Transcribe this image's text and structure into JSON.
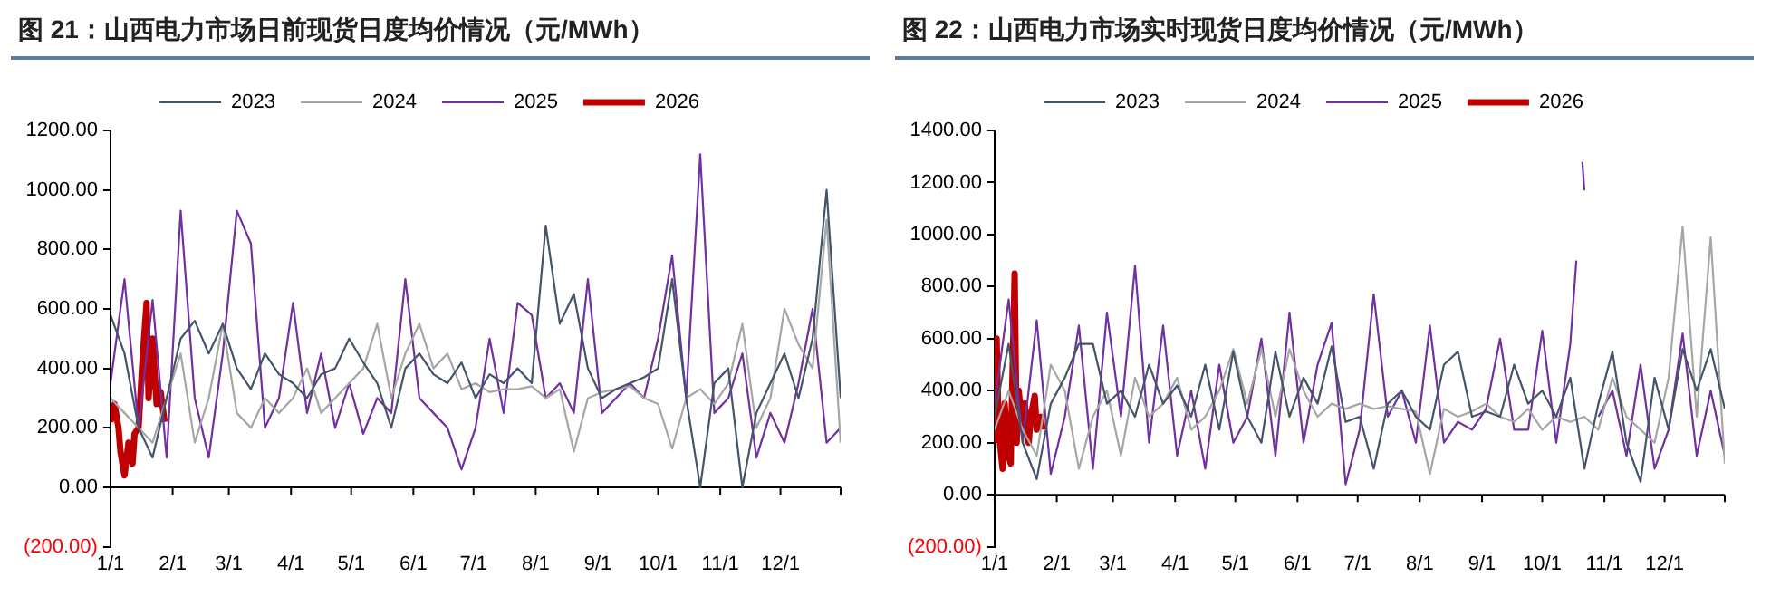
{
  "chart_data": [
    {
      "type": "line",
      "title": "图 21：山西电力市场日前现货日度均价情况（元/MWh）",
      "legend": "top",
      "x": [
        "--01-01",
        "--01-08",
        "--01-15",
        "--01-22",
        "--01-29",
        "--02-05",
        "--02-12",
        "--02-19",
        "--02-26",
        "--03-05",
        "--03-12",
        "--03-19",
        "--03-26",
        "--04-02",
        "--04-09",
        "--04-16",
        "--04-23",
        "--04-30",
        "--05-07",
        "--05-14",
        "--05-21",
        "--05-28",
        "--06-04",
        "--06-11",
        "--06-18",
        "--06-25",
        "--07-02",
        "--07-09",
        "--07-16",
        "--07-23",
        "--07-30",
        "--08-06",
        "--08-13",
        "--08-20",
        "--08-27",
        "--09-03",
        "--09-10",
        "--09-17",
        "--09-24",
        "--10-01",
        "--10-08",
        "--10-15",
        "--10-22",
        "--10-29",
        "--11-05",
        "--11-12",
        "--11-19",
        "--11-26",
        "--12-03",
        "--12-10",
        "--12-17",
        "--12-24",
        "--12-31"
      ],
      "xlim": [
        "--01-01",
        "--12-31"
      ],
      "xticks": [
        {
          "value": "--01-01",
          "label": "1/1"
        },
        {
          "value": "--02-01",
          "label": "2/1"
        },
        {
          "value": "--03-01",
          "label": "3/1"
        },
        {
          "value": "--04-01",
          "label": "4/1"
        },
        {
          "value": "--05-01",
          "label": "5/1"
        },
        {
          "value": "--06-01",
          "label": "6/1"
        },
        {
          "value": "--07-01",
          "label": "7/1"
        },
        {
          "value": "--08-01",
          "label": "8/1"
        },
        {
          "value": "--09-01",
          "label": "9/1"
        },
        {
          "value": "--10-01",
          "label": "10/1"
        },
        {
          "value": "--11-01",
          "label": "11/1"
        },
        {
          "value": "--12-01",
          "label": "12/1"
        }
      ],
      "ylim": [
        -200,
        1200
      ],
      "yticks": [
        {
          "value": -200,
          "label": "(200.00)"
        },
        {
          "value": 0,
          "label": "0.00"
        },
        {
          "value": 200,
          "label": "200.00"
        },
        {
          "value": 400,
          "label": "400.00"
        },
        {
          "value": 600,
          "label": "600.00"
        },
        {
          "value": 800,
          "label": "800.00"
        },
        {
          "value": 1000,
          "label": "1000.00"
        },
        {
          "value": 1200,
          "label": "1200.00"
        }
      ],
      "series": [
        {
          "name": "2023",
          "color": "#44546a",
          "values": [
            580,
            450,
            200,
            100,
            300,
            500,
            560,
            450,
            550,
            400,
            330,
            450,
            380,
            350,
            300,
            380,
            400,
            500,
            420,
            350,
            200,
            400,
            450,
            380,
            350,
            420,
            300,
            380,
            350,
            400,
            350,
            880,
            550,
            650,
            400,
            300,
            330,
            350,
            370,
            400,
            700,
            300,
            0,
            350,
            400,
            0,
            250,
            350,
            450,
            300,
            500,
            1000,
            300
          ]
        },
        {
          "name": "2024",
          "color": "#a6a6a6",
          "values": [
            300,
            250,
            200,
            150,
            300,
            450,
            150,
            300,
            550,
            250,
            200,
            300,
            250,
            300,
            400,
            250,
            300,
            350,
            400,
            550,
            300,
            450,
            550,
            400,
            450,
            330,
            350,
            320,
            330,
            330,
            340,
            300,
            330,
            120,
            300,
            320,
            330,
            340,
            300,
            280,
            130,
            300,
            330,
            280,
            350,
            550,
            200,
            300,
            600,
            480,
            400,
            900,
            150
          ]
        },
        {
          "name": "2025",
          "color": "#7030a0",
          "values": [
            350,
            700,
            200,
            630,
            100,
            930,
            300,
            100,
            450,
            930,
            820,
            200,
            300,
            620,
            250,
            450,
            200,
            350,
            180,
            300,
            250,
            700,
            300,
            250,
            200,
            60,
            200,
            500,
            250,
            620,
            580,
            300,
            350,
            250,
            700,
            250,
            300,
            350,
            300,
            500,
            780,
            300,
            1120,
            250,
            300,
            450,
            100,
            250,
            150,
            350,
            600,
            150,
            200
          ]
        },
        {
          "name": "2026",
          "color": "#c00000",
          "x": [
            "--01-01",
            "--01-03",
            "--01-05",
            "--01-06",
            "--01-08",
            "--01-10",
            "--01-12",
            "--01-13",
            "--01-15",
            "--01-17",
            "--01-19",
            "--01-20",
            "--01-22",
            "--01-24",
            "--01-26",
            "--01-28"
          ],
          "values": [
            220,
            280,
            200,
            120,
            40,
            150,
            80,
            180,
            200,
            430,
            620,
            300,
            500,
            280,
            320,
            220
          ]
        }
      ]
    },
    {
      "type": "line",
      "title": "图 22：山西电力市场实时现货日度均价情况（元/MWh）",
      "legend": "top",
      "x": [
        "--01-01",
        "--01-08",
        "--01-15",
        "--01-22",
        "--01-29",
        "--02-05",
        "--02-12",
        "--02-19",
        "--02-26",
        "--03-05",
        "--03-12",
        "--03-19",
        "--03-26",
        "--04-02",
        "--04-09",
        "--04-16",
        "--04-23",
        "--04-30",
        "--05-07",
        "--05-14",
        "--05-21",
        "--05-28",
        "--06-04",
        "--06-11",
        "--06-18",
        "--06-25",
        "--07-02",
        "--07-09",
        "--07-16",
        "--07-23",
        "--07-30",
        "--08-06",
        "--08-13",
        "--08-20",
        "--08-27",
        "--09-03",
        "--09-10",
        "--09-17",
        "--09-24",
        "--10-01",
        "--10-08",
        "--10-15",
        "--10-22",
        "--10-29",
        "--11-05",
        "--11-12",
        "--11-19",
        "--11-26",
        "--12-03",
        "--12-10",
        "--12-17",
        "--12-24",
        "--12-31"
      ],
      "xlim": [
        "--01-01",
        "--12-31"
      ],
      "xticks": [
        {
          "value": "--01-01",
          "label": "1/1"
        },
        {
          "value": "--02-01",
          "label": "2/1"
        },
        {
          "value": "--03-01",
          "label": "3/1"
        },
        {
          "value": "--04-01",
          "label": "4/1"
        },
        {
          "value": "--05-01",
          "label": "5/1"
        },
        {
          "value": "--06-01",
          "label": "6/1"
        },
        {
          "value": "--07-01",
          "label": "7/1"
        },
        {
          "value": "--08-01",
          "label": "8/1"
        },
        {
          "value": "--09-01",
          "label": "9/1"
        },
        {
          "value": "--10-01",
          "label": "10/1"
        },
        {
          "value": "--11-01",
          "label": "11/1"
        },
        {
          "value": "--12-01",
          "label": "12/1"
        }
      ],
      "ylim": [
        -200,
        1400
      ],
      "yticks": [
        {
          "value": -200,
          "label": "(200.00)"
        },
        {
          "value": 0,
          "label": "0.00"
        },
        {
          "value": 200,
          "label": "200.00"
        },
        {
          "value": 400,
          "label": "400.00"
        },
        {
          "value": 600,
          "label": "600.00"
        },
        {
          "value": 800,
          "label": "800.00"
        },
        {
          "value": 1000,
          "label": "1000.00"
        },
        {
          "value": 1200,
          "label": "1200.00"
        },
        {
          "value": 1400,
          "label": "1400.00"
        }
      ],
      "series": [
        {
          "name": "2023",
          "color": "#44546a",
          "values": [
            300,
            580,
            200,
            60,
            350,
            450,
            580,
            580,
            350,
            400,
            300,
            500,
            350,
            420,
            300,
            500,
            250,
            550,
            300,
            200,
            550,
            300,
            450,
            350,
            570,
            280,
            300,
            100,
            350,
            400,
            300,
            250,
            500,
            550,
            300,
            320,
            300,
            500,
            350,
            400,
            300,
            450,
            100,
            350,
            550,
            200,
            50,
            450,
            250,
            560,
            400,
            560,
            330
          ]
        },
        {
          "name": "2024",
          "color": "#a6a6a6",
          "values": [
            250,
            400,
            250,
            150,
            500,
            400,
            100,
            300,
            400,
            150,
            450,
            300,
            350,
            450,
            250,
            300,
            400,
            560,
            350,
            560,
            300,
            560,
            400,
            300,
            350,
            330,
            350,
            330,
            340,
            330,
            320,
            80,
            330,
            300,
            320,
            350,
            300,
            280,
            330,
            250,
            300,
            280,
            300,
            250,
            450,
            300,
            250,
            200,
            450,
            1030,
            300,
            990,
            120
          ]
        },
        {
          "name": "2025",
          "color": "#7030a0",
          "x": [
            "--01-01",
            "--01-08",
            "--01-15",
            "--01-22",
            "--01-29",
            "--02-05",
            "--02-12",
            "--02-19",
            "--02-26",
            "--03-05",
            "--03-12",
            "--03-19",
            "--03-26",
            "--04-02",
            "--04-09",
            "--04-16",
            "--04-23",
            "--04-30",
            "--05-07",
            "--05-14",
            "--05-21",
            "--05-28",
            "--06-04",
            "--06-11",
            "--06-18",
            "--06-25",
            "--07-02",
            "--07-09",
            "--07-16",
            "--07-23",
            "--07-30",
            "--08-06",
            "--08-13",
            "--08-20",
            "--08-27",
            "--09-03",
            "--09-10",
            "--09-17",
            "--09-24",
            "--10-01",
            "--10-08",
            "--10-15",
            "--10-18",
            "--10-20",
            "--10-21",
            "--10-22",
            "--10-25",
            "--10-29",
            "--11-05",
            "--11-12",
            "--11-19",
            "--11-26",
            "--12-03",
            "--12-10",
            "--12-17",
            "--12-24",
            "--12-31"
          ],
          "values": [
            350,
            750,
            200,
            670,
            80,
            300,
            650,
            100,
            700,
            300,
            880,
            200,
            650,
            150,
            400,
            100,
            500,
            200,
            300,
            600,
            150,
            700,
            200,
            500,
            660,
            40,
            250,
            770,
            300,
            400,
            200,
            650,
            200,
            280,
            250,
            330,
            600,
            250,
            250,
            630,
            200,
            580,
            900,
            null,
            1280,
            1170,
            null,
            300,
            400,
            150,
            500,
            100,
            250,
            620,
            150,
            400,
            150
          ]
        },
        {
          "name": "2026",
          "color": "#c00000",
          "x": [
            "--01-01",
            "--01-02",
            "--01-03",
            "--01-05",
            "--01-06",
            "--01-08",
            "--01-09",
            "--01-11",
            "--01-12",
            "--01-13",
            "--01-15",
            "--01-16",
            "--01-18",
            "--01-19",
            "--01-21",
            "--01-22",
            "--01-24",
            "--01-25"
          ],
          "values": [
            200,
            600,
            250,
            100,
            350,
            150,
            120,
            850,
            200,
            400,
            250,
            350,
            200,
            300,
            380,
            250,
            300,
            250
          ]
        }
      ]
    }
  ]
}
